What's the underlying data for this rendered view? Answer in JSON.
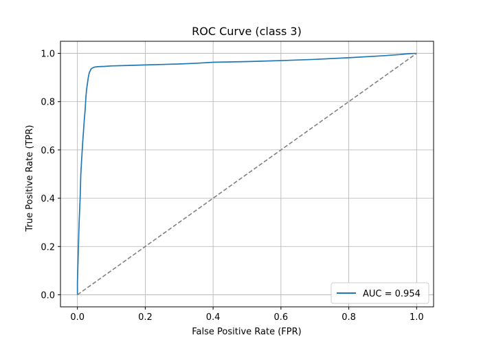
{
  "chart_data": {
    "type": "line",
    "title": "ROC Curve (class 3)",
    "xlabel": "False Positive Rate (FPR)",
    "ylabel": "True Positive Rate (TPR)",
    "xlim": [
      -0.05,
      1.05
    ],
    "ylim": [
      -0.05,
      1.05
    ],
    "xticks": [
      0.0,
      0.2,
      0.4,
      0.6,
      0.8,
      1.0
    ],
    "yticks": [
      0.0,
      0.2,
      0.4,
      0.6,
      0.8,
      1.0
    ],
    "xtick_labels": [
      "0.0",
      "0.2",
      "0.4",
      "0.6",
      "0.8",
      "1.0"
    ],
    "ytick_labels": [
      "0.0",
      "0.2",
      "0.4",
      "0.6",
      "0.8",
      "1.0"
    ],
    "grid": true,
    "legend_position": "lower-right",
    "series": [
      {
        "name": "AUC = 0.954",
        "color": "#1f77b4",
        "style": "solid",
        "x": [
          0.0,
          0.0,
          0.003,
          0.005,
          0.008,
          0.01,
          0.012,
          0.015,
          0.018,
          0.02,
          0.023,
          0.025,
          0.027,
          0.03,
          0.032,
          0.035,
          0.04,
          0.045,
          0.05,
          0.06,
          0.08,
          0.1,
          0.15,
          0.2,
          0.25,
          0.3,
          0.35,
          0.4,
          0.5,
          0.6,
          0.7,
          0.8,
          0.9,
          0.95,
          0.98,
          1.0
        ],
        "y": [
          0.0,
          0.05,
          0.2,
          0.3,
          0.4,
          0.5,
          0.55,
          0.62,
          0.68,
          0.72,
          0.77,
          0.82,
          0.85,
          0.88,
          0.9,
          0.92,
          0.935,
          0.94,
          0.943,
          0.945,
          0.946,
          0.948,
          0.95,
          0.952,
          0.954,
          0.956,
          0.959,
          0.963,
          0.966,
          0.97,
          0.975,
          0.982,
          0.99,
          0.995,
          0.999,
          1.0
        ]
      },
      {
        "name": "",
        "color": "#808080",
        "style": "dashed",
        "x": [
          0.0,
          1.0
        ],
        "y": [
          0.0,
          1.0
        ]
      }
    ]
  },
  "colors": {
    "grid": "#b0b0b0",
    "axes": "#000000",
    "background": "#ffffff"
  }
}
